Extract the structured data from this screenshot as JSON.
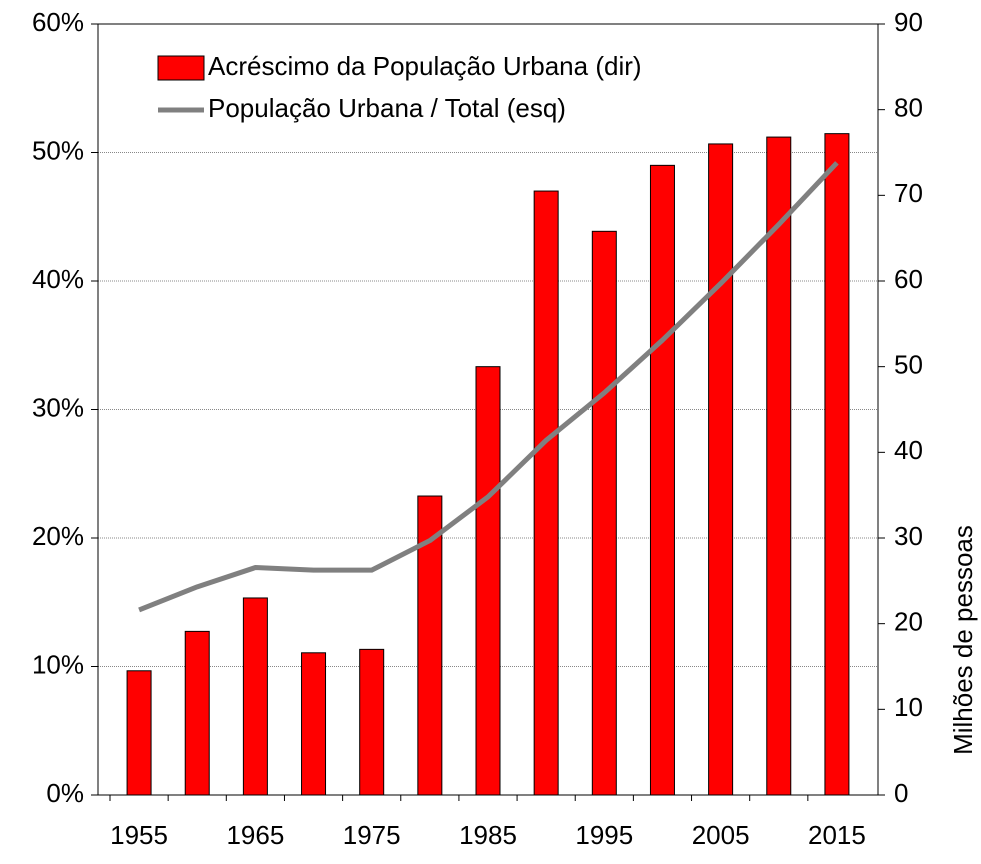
{
  "chart_data": {
    "type": "bar-line",
    "categories": [
      "1955",
      null,
      "1965",
      null,
      "1975",
      null,
      "1985",
      null,
      "1995",
      null,
      "2005",
      null,
      "2015"
    ],
    "series": [
      {
        "name": "Acréscimo da População Urbana (dir)",
        "type": "bar",
        "axis": "y2",
        "color": "#ff0000",
        "values": [
          14.5,
          19.1,
          23.0,
          16.6,
          17.0,
          34.9,
          50.0,
          70.5,
          65.8,
          73.5,
          76.0,
          76.8,
          77.2
        ]
      },
      {
        "name": "População Urbana / Total (esq)",
        "type": "line",
        "axis": "y",
        "color": "#808080",
        "values": [
          14.4,
          16.2,
          17.7,
          17.5,
          17.5,
          19.8,
          23.2,
          27.6,
          31.3,
          35.4,
          39.8,
          44.4,
          49.2
        ]
      }
    ],
    "ylim": [
      0,
      60
    ],
    "yticks": [
      {
        "value": 0,
        "label": "0%"
      },
      {
        "value": 10,
        "label": "10%"
      },
      {
        "value": 20,
        "label": "20%"
      },
      {
        "value": 30,
        "label": "30%"
      },
      {
        "value": 40,
        "label": "40%"
      },
      {
        "value": 50,
        "label": "50%"
      },
      {
        "value": 60,
        "label": "60%"
      }
    ],
    "y2lim": [
      0,
      90
    ],
    "y2ticks": [
      0,
      10,
      20,
      30,
      40,
      50,
      60,
      70,
      80,
      90
    ],
    "y2label": "Milhões de pessoas",
    "grid": true,
    "legend": "top-left"
  }
}
